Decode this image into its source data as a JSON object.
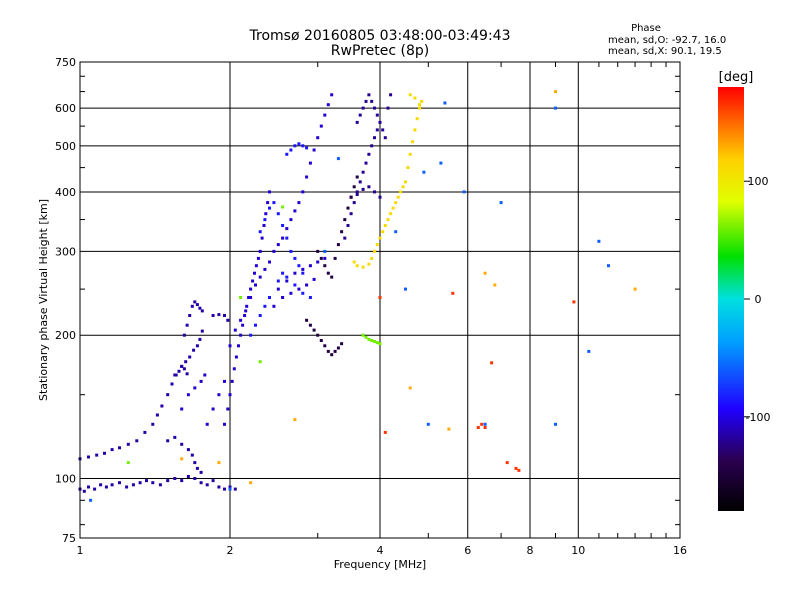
{
  "chart_data": {
    "type": "scatter",
    "title": "Tromsø 20160805 03:48:00-03:49:43",
    "subtitle": "RwPretec (8p)",
    "xlabel": "Frequency [MHz]",
    "ylabel": "Stationary phase Virtual Height [km]",
    "x_scale": "log",
    "y_scale": "log",
    "xlim": [
      1,
      16
    ],
    "ylim": [
      75,
      750
    ],
    "x_ticks": [
      1,
      2,
      4,
      6,
      8,
      10,
      16
    ],
    "y_ticks": [
      75,
      100,
      200,
      300,
      400,
      500,
      600,
      750
    ],
    "grid": true,
    "phase_info": {
      "heading": "Phase",
      "line_o": "mean, sd,O: -92.7, 16.0",
      "line_x": "mean, sd,X:  90.1, 19.5"
    },
    "colorbar": {
      "label": "[deg]",
      "range": [
        -180,
        180
      ],
      "ticks": [
        -100,
        0,
        100
      ]
    },
    "series": [
      {
        "phase": -115,
        "points": [
          [
            1.0,
            95
          ],
          [
            1.02,
            94
          ],
          [
            1.04,
            96
          ],
          [
            1.07,
            95
          ],
          [
            1.1,
            97
          ],
          [
            1.13,
            96
          ],
          [
            1.16,
            97
          ],
          [
            1.2,
            98
          ],
          [
            1.24,
            96
          ],
          [
            1.28,
            97
          ],
          [
            1.32,
            98
          ],
          [
            1.36,
            99
          ],
          [
            1.4,
            98
          ],
          [
            1.45,
            97
          ],
          [
            1.5,
            99
          ],
          [
            1.55,
            100
          ],
          [
            1.6,
            99
          ],
          [
            1.65,
            101
          ],
          [
            1.7,
            100
          ],
          [
            1.75,
            98
          ],
          [
            1.8,
            97
          ],
          [
            1.85,
            99
          ],
          [
            1.9,
            96
          ],
          [
            1.95,
            95
          ],
          [
            2.0,
            96
          ],
          [
            2.05,
            95
          ],
          [
            1.0,
            110
          ],
          [
            1.04,
            111
          ],
          [
            1.08,
            112
          ],
          [
            1.12,
            113
          ],
          [
            1.16,
            115
          ],
          [
            1.2,
            116
          ],
          [
            1.25,
            118
          ],
          [
            1.3,
            120
          ],
          [
            1.35,
            125
          ],
          [
            1.4,
            130
          ],
          [
            1.43,
            136
          ],
          [
            1.46,
            142
          ],
          [
            1.5,
            150
          ],
          [
            1.53,
            158
          ],
          [
            1.56,
            165
          ],
          [
            1.6,
            172
          ],
          [
            1.63,
            176
          ],
          [
            1.66,
            180
          ],
          [
            1.69,
            186
          ],
          [
            1.72,
            190
          ],
          [
            1.74,
            196
          ],
          [
            1.76,
            204
          ],
          [
            1.5,
            120
          ],
          [
            1.55,
            122
          ],
          [
            1.6,
            118
          ],
          [
            1.65,
            115
          ],
          [
            1.68,
            112
          ],
          [
            1.7,
            108
          ],
          [
            1.72,
            105
          ],
          [
            1.75,
            103
          ],
          [
            1.62,
            200
          ],
          [
            1.64,
            210
          ],
          [
            1.66,
            220
          ],
          [
            1.68,
            230
          ],
          [
            1.7,
            235
          ],
          [
            1.72,
            232
          ],
          [
            1.74,
            228
          ],
          [
            1.76,
            225
          ],
          [
            1.85,
            220
          ],
          [
            1.9,
            221
          ],
          [
            1.95,
            220
          ],
          [
            1.98,
            215
          ],
          [
            1.55,
            165
          ],
          [
            1.58,
            168
          ],
          [
            1.6,
            172
          ],
          [
            1.62,
            170
          ],
          [
            1.64,
            166
          ]
        ]
      },
      {
        "phase": -105,
        "points": [
          [
            1.95,
            130
          ],
          [
            1.98,
            140
          ],
          [
            2.0,
            150
          ],
          [
            2.02,
            160
          ],
          [
            2.04,
            170
          ],
          [
            2.06,
            180
          ],
          [
            2.08,
            190
          ],
          [
            2.1,
            200
          ],
          [
            2.12,
            210
          ],
          [
            2.14,
            220
          ],
          [
            2.16,
            230
          ],
          [
            2.18,
            240
          ],
          [
            2.2,
            250
          ],
          [
            2.22,
            260
          ],
          [
            2.24,
            270
          ],
          [
            2.26,
            280
          ],
          [
            2.28,
            290
          ],
          [
            2.3,
            300
          ],
          [
            2.32,
            320
          ],
          [
            2.34,
            340
          ],
          [
            2.36,
            360
          ],
          [
            2.38,
            380
          ],
          [
            2.4,
            400
          ],
          [
            2.0,
            190
          ],
          [
            2.05,
            205
          ],
          [
            2.1,
            215
          ],
          [
            2.15,
            225
          ],
          [
            2.2,
            240
          ],
          [
            2.25,
            255
          ],
          [
            2.3,
            265
          ],
          [
            2.35,
            275
          ],
          [
            2.4,
            285
          ],
          [
            2.45,
            300
          ],
          [
            2.5,
            310
          ],
          [
            2.55,
            320
          ],
          [
            2.6,
            335
          ],
          [
            2.65,
            350
          ],
          [
            2.7,
            365
          ],
          [
            2.75,
            380
          ],
          [
            2.8,
            400
          ],
          [
            2.85,
            430
          ],
          [
            2.9,
            460
          ],
          [
            2.95,
            490
          ],
          [
            3.0,
            520
          ],
          [
            3.05,
            550
          ],
          [
            3.1,
            580
          ],
          [
            3.15,
            610
          ],
          [
            3.2,
            640
          ],
          [
            2.5,
            250
          ],
          [
            2.6,
            260
          ],
          [
            2.7,
            270
          ],
          [
            2.8,
            275
          ],
          [
            2.9,
            280
          ],
          [
            3.0,
            285
          ],
          [
            3.1,
            290
          ],
          [
            2.45,
            230
          ],
          [
            2.55,
            240
          ],
          [
            2.65,
            245
          ],
          [
            2.75,
            250
          ],
          [
            2.85,
            255
          ],
          [
            2.95,
            262
          ],
          [
            1.8,
            130
          ],
          [
            1.85,
            140
          ],
          [
            1.9,
            150
          ],
          [
            1.95,
            160
          ],
          [
            1.6,
            140
          ],
          [
            1.65,
            150
          ],
          [
            1.7,
            155
          ],
          [
            1.75,
            160
          ],
          [
            1.78,
            165
          ]
        ]
      },
      {
        "phase": -85,
        "points": [
          [
            2.3,
            330
          ],
          [
            2.35,
            350
          ],
          [
            2.4,
            370
          ],
          [
            2.45,
            380
          ],
          [
            2.5,
            360
          ],
          [
            2.55,
            340
          ],
          [
            2.6,
            320
          ],
          [
            2.65,
            300
          ],
          [
            2.7,
            290
          ],
          [
            2.75,
            280
          ],
          [
            2.8,
            270
          ],
          [
            2.6,
            480
          ],
          [
            2.65,
            490
          ],
          [
            2.7,
            500
          ],
          [
            2.75,
            505
          ],
          [
            2.8,
            500
          ],
          [
            2.85,
            495
          ],
          [
            2.5,
            260
          ],
          [
            2.55,
            270
          ],
          [
            2.6,
            265
          ],
          [
            2.7,
            255
          ],
          [
            2.8,
            245
          ],
          [
            2.9,
            240
          ],
          [
            2.2,
            200
          ],
          [
            2.25,
            210
          ],
          [
            2.3,
            220
          ],
          [
            2.35,
            230
          ],
          [
            2.4,
            240
          ]
        ]
      },
      {
        "phase": -120,
        "points": [
          [
            3.4,
            320
          ],
          [
            3.45,
            340
          ],
          [
            3.5,
            360
          ],
          [
            3.55,
            380
          ],
          [
            3.6,
            400
          ],
          [
            3.65,
            420
          ],
          [
            3.7,
            440
          ],
          [
            3.75,
            460
          ],
          [
            3.8,
            480
          ],
          [
            3.85,
            500
          ],
          [
            3.9,
            520
          ],
          [
            3.95,
            540
          ],
          [
            3.6,
            560
          ],
          [
            3.65,
            580
          ],
          [
            3.7,
            600
          ],
          [
            3.75,
            620
          ],
          [
            3.8,
            640
          ],
          [
            3.85,
            620
          ],
          [
            3.9,
            600
          ],
          [
            3.95,
            580
          ],
          [
            4.0,
            560
          ],
          [
            4.05,
            540
          ],
          [
            4.1,
            520
          ],
          [
            4.15,
            600
          ],
          [
            4.2,
            640
          ],
          [
            3.5,
            390
          ],
          [
            3.6,
            395
          ],
          [
            3.7,
            405
          ],
          [
            3.8,
            410
          ],
          [
            3.9,
            400
          ],
          [
            4.0,
            390
          ]
        ]
      },
      {
        "phase": -145,
        "points": [
          [
            3.0,
            300
          ],
          [
            3.05,
            290
          ],
          [
            3.1,
            280
          ],
          [
            3.15,
            270
          ],
          [
            3.2,
            265
          ],
          [
            3.25,
            290
          ],
          [
            3.3,
            310
          ],
          [
            3.35,
            330
          ],
          [
            3.4,
            350
          ],
          [
            3.45,
            370
          ],
          [
            3.5,
            390
          ],
          [
            3.55,
            410
          ],
          [
            3.6,
            430
          ],
          [
            2.85,
            215
          ],
          [
            2.9,
            210
          ],
          [
            2.95,
            205
          ],
          [
            3.0,
            200
          ],
          [
            3.05,
            195
          ],
          [
            3.1,
            190
          ],
          [
            3.15,
            185
          ],
          [
            3.2,
            182
          ],
          [
            3.25,
            185
          ],
          [
            3.3,
            188
          ],
          [
            3.35,
            192
          ]
        ]
      },
      {
        "phase": 110,
        "points": [
          [
            3.55,
            285
          ],
          [
            3.6,
            280
          ],
          [
            3.7,
            278
          ],
          [
            3.8,
            282
          ],
          [
            3.85,
            290
          ],
          [
            3.9,
            300
          ],
          [
            3.95,
            310
          ],
          [
            4.0,
            320
          ],
          [
            4.05,
            330
          ],
          [
            4.1,
            340
          ],
          [
            4.15,
            350
          ],
          [
            4.2,
            360
          ],
          [
            4.25,
            370
          ],
          [
            4.3,
            380
          ],
          [
            4.35,
            390
          ],
          [
            4.4,
            400
          ],
          [
            4.45,
            410
          ],
          [
            4.5,
            420
          ],
          [
            4.55,
            450
          ],
          [
            4.6,
            480
          ],
          [
            4.65,
            510
          ],
          [
            4.7,
            540
          ],
          [
            4.75,
            570
          ],
          [
            4.8,
            600
          ],
          [
            4.85,
            620
          ],
          [
            4.6,
            640
          ],
          [
            4.7,
            630
          ],
          [
            4.8,
            610
          ]
        ]
      },
      {
        "phase": 60,
        "points": [
          [
            3.7,
            200
          ],
          [
            3.75,
            198
          ],
          [
            3.8,
            196
          ],
          [
            3.85,
            195
          ],
          [
            3.9,
            194
          ],
          [
            3.95,
            193
          ],
          [
            4.0,
            192
          ],
          [
            1.25,
            108
          ],
          [
            2.3,
            176
          ],
          [
            2.55,
            372
          ],
          [
            2.1,
            240
          ]
        ]
      },
      {
        "phase": 165,
        "points": [
          [
            6.3,
            128
          ],
          [
            6.4,
            130
          ],
          [
            6.5,
            128
          ],
          [
            7.2,
            108
          ],
          [
            7.5,
            105
          ],
          [
            7.6,
            104
          ],
          [
            4.0,
            240
          ],
          [
            6.7,
            175
          ],
          [
            9.8,
            235
          ],
          [
            4.1,
            125
          ],
          [
            5.6,
            245
          ]
        ]
      },
      {
        "phase": 130,
        "points": [
          [
            6.5,
            270
          ],
          [
            6.8,
            255
          ],
          [
            5.5,
            127
          ],
          [
            2.7,
            133
          ],
          [
            1.6,
            110
          ],
          [
            1.9,
            108
          ],
          [
            13.0,
            250
          ],
          [
            9.0,
            650
          ],
          [
            4.6,
            155
          ],
          [
            2.2,
            98
          ]
        ]
      },
      {
        "phase": -60,
        "points": [
          [
            5.9,
            400
          ],
          [
            5.4,
            615
          ],
          [
            3.3,
            470
          ],
          [
            4.9,
            440
          ],
          [
            7.0,
            380
          ],
          [
            10.5,
            185
          ],
          [
            11.0,
            315
          ],
          [
            11.5,
            280
          ],
          [
            3.1,
            300
          ],
          [
            4.3,
            330
          ],
          [
            4.5,
            250
          ],
          [
            5.0,
            130
          ],
          [
            2.0,
            95
          ],
          [
            9.0,
            130
          ],
          [
            1.05,
            90
          ],
          [
            6.5,
            130
          ],
          [
            5.3,
            460
          ],
          [
            9.0,
            600
          ]
        ]
      }
    ]
  }
}
